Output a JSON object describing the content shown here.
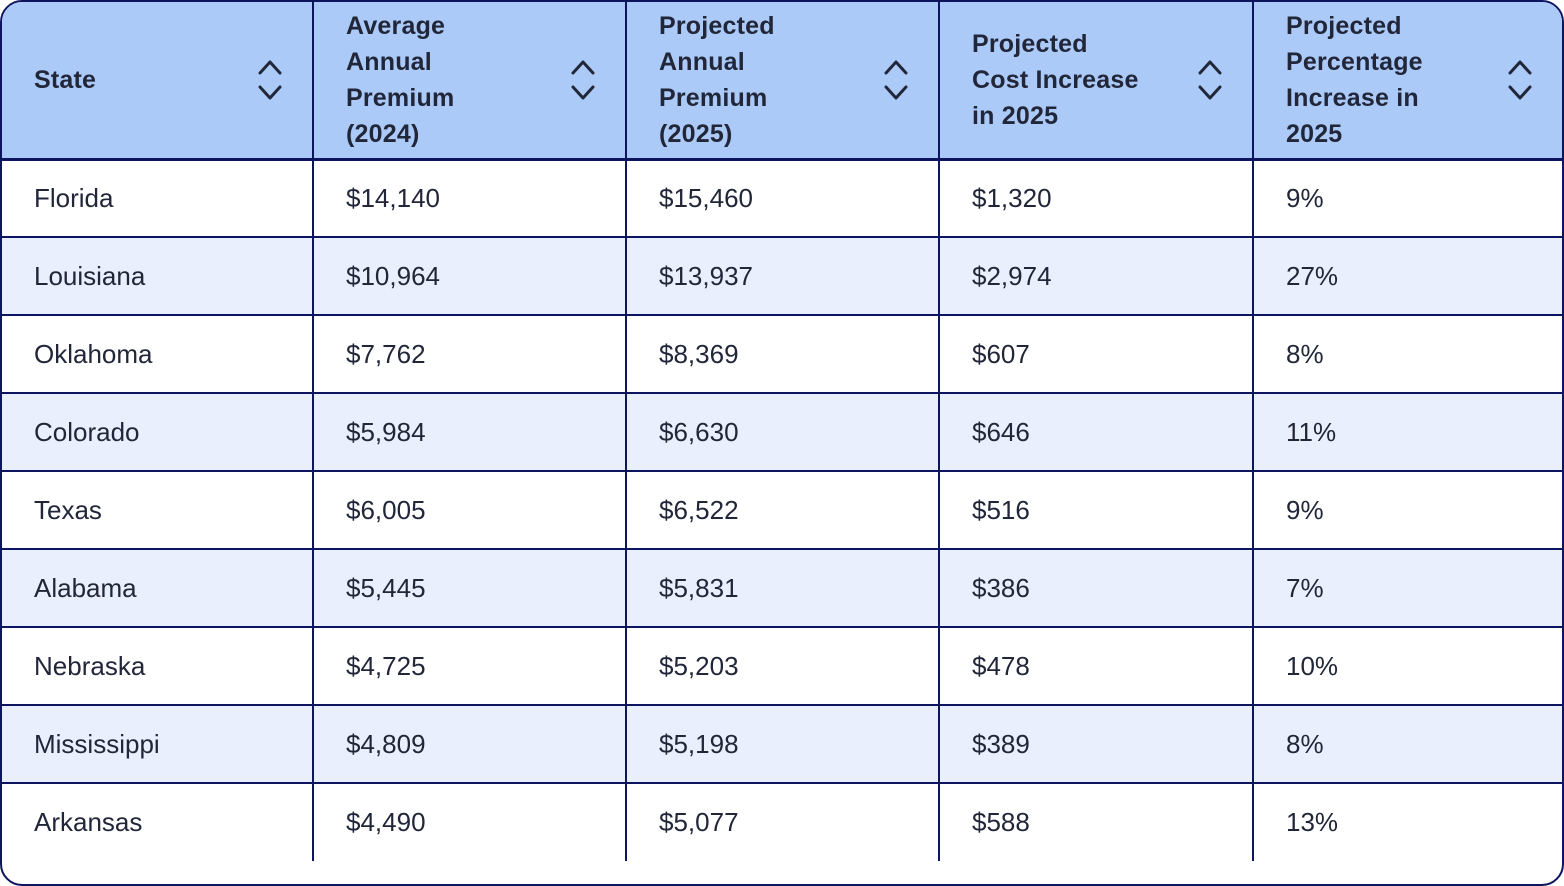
{
  "chart_data": {
    "type": "table",
    "columns": [
      "State",
      "Average Annual Premium (2024)",
      "Projected Annual Premium (2025)",
      "Projected Cost Increase in 2025",
      "Projected Percentage Increase in 2025"
    ],
    "rows": [
      [
        "Florida",
        "$14,140",
        "$15,460",
        "$1,320",
        "9%"
      ],
      [
        "Louisiana",
        "$10,964",
        "$13,937",
        "$2,974",
        "27%"
      ],
      [
        "Oklahoma",
        "$7,762",
        "$8,369",
        "$607",
        "8%"
      ],
      [
        "Colorado",
        "$5,984",
        "$6,630",
        "$646",
        "11%"
      ],
      [
        "Texas",
        "$6,005",
        "$6,522",
        "$516",
        "9%"
      ],
      [
        "Alabama",
        "$5,445",
        "$5,831",
        "$386",
        "7%"
      ],
      [
        "Nebraska",
        "$4,725",
        "$5,203",
        "$478",
        "10%"
      ],
      [
        "Mississippi",
        "$4,809",
        "$5,198",
        "$389",
        "8%"
      ],
      [
        "Arkansas",
        "$4,490",
        "$5,077",
        "$588",
        "13%"
      ]
    ]
  },
  "ui": {
    "columns": [
      {
        "display": "State"
      },
      {
        "display": "Average\nAnnual\nPremium\n(2024)"
      },
      {
        "display": "Projected\nAnnual\nPremium\n(2025)"
      },
      {
        "display": "Projected\nCost Increase\nin 2025"
      },
      {
        "display": "Projected\nPercentage\nIncrease in\n2025"
      }
    ],
    "sort_control": {
      "ascending_icon": "chevron-up",
      "descending_icon": "chevron-down"
    }
  },
  "colors": {
    "header_background": "#ABCAF8",
    "stripe_background": "#E9EFFC",
    "row_background": "#FFFFFF",
    "border": "#0E155F",
    "text": "#212639"
  }
}
